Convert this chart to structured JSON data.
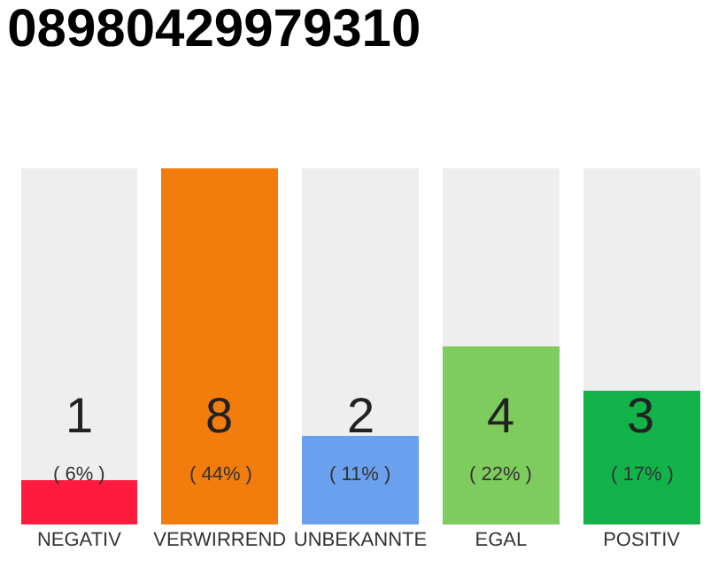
{
  "chart_data": {
    "type": "bar",
    "title": "08980429979310",
    "stacked": true,
    "categories": [
      "NEGATIV",
      "VERWIRREND",
      "UNBEKANNTE",
      "EGAL",
      "POSITIV"
    ],
    "series": [
      {
        "colors": [
          "#ff1a40",
          "#f27c0c",
          "#6aa0ee",
          "#7ecb5e",
          "#12b34a"
        ],
        "values": [
          1,
          8,
          2,
          4,
          3
        ],
        "value_labels": [
          "1",
          "8",
          "2",
          "4",
          "3"
        ]
      },
      {
        "color": "#eeeeee",
        "values": [
          7,
          0,
          6,
          4,
          5
        ]
      }
    ],
    "annotations": [
      "( 6% )",
      "( 44% )",
      "( 11% )",
      "( 22% )",
      "( 17% )"
    ]
  }
}
